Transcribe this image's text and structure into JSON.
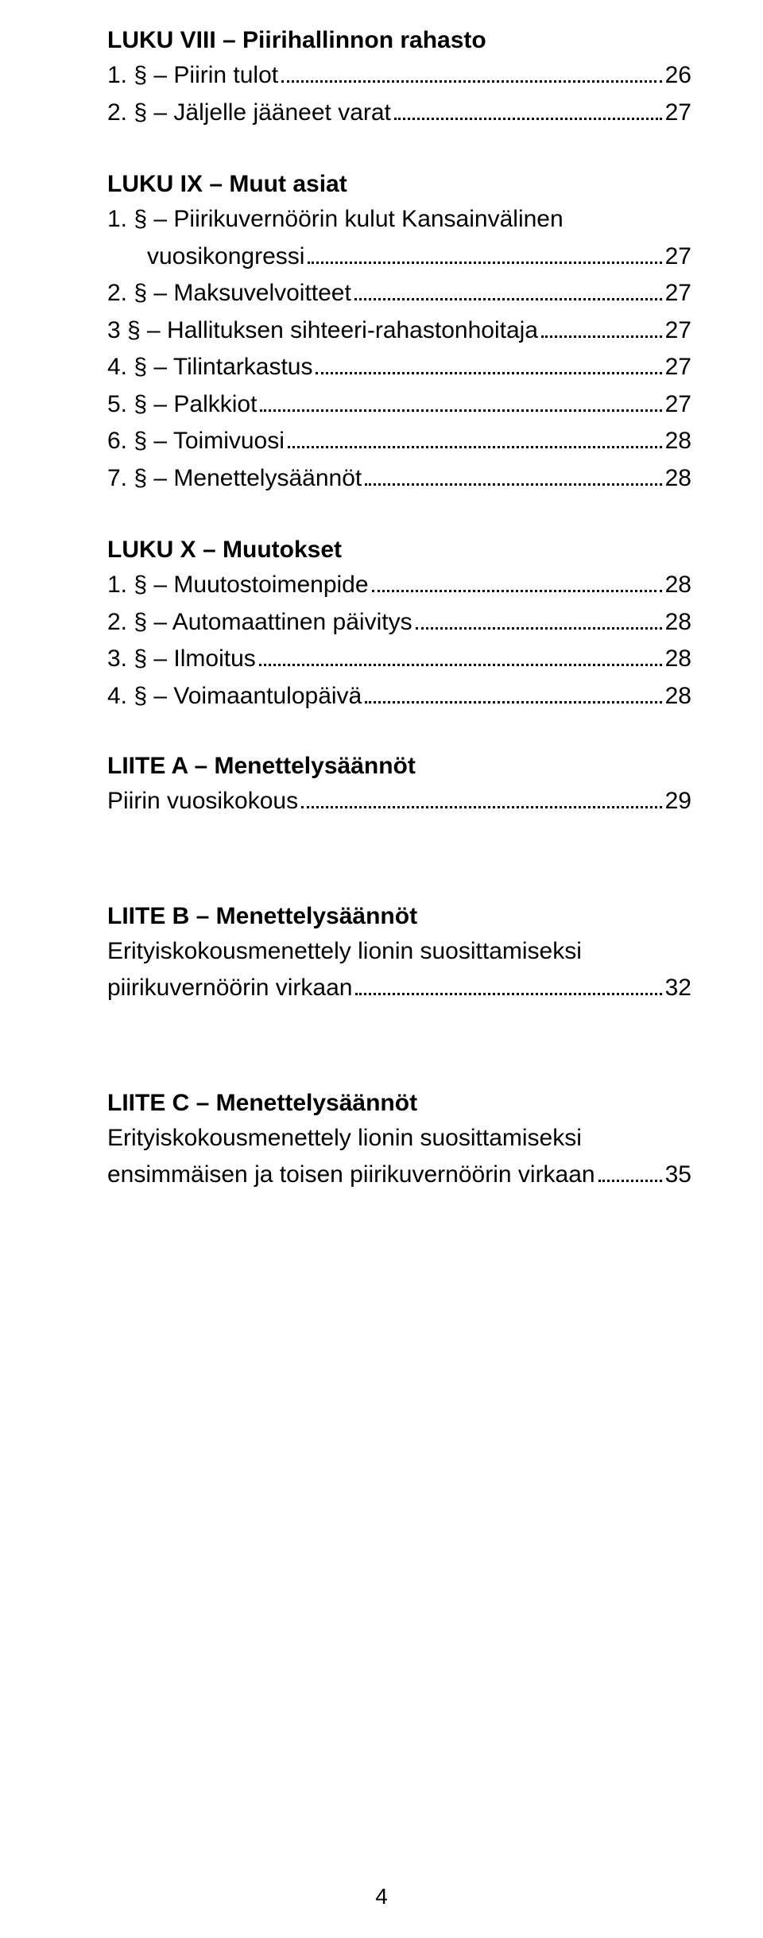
{
  "luku8": {
    "heading": "LUKU VIII – Piirihallinnon rahasto",
    "items": [
      {
        "label": "1. § – Piirin tulot",
        "page": "26"
      },
      {
        "label": "2. § – Jäljelle jääneet varat",
        "page": "27"
      }
    ]
  },
  "luku9": {
    "heading": "LUKU IX – Muut asiat",
    "items": [
      {
        "label": "1. § – Piirikuvernöörin kulut Kansainvälinen",
        "label2": "vuosikongressi",
        "page": " 27",
        "wrap": true
      },
      {
        "label": "2. § – Maksuvelvoitteet",
        "page": " 27"
      },
      {
        "label": "3 § – Hallituksen sihteeri-rahastonhoitaja",
        "page": "27"
      },
      {
        "label": "4. § – Tilintarkastus",
        "page": " 27"
      },
      {
        "label": "5. § – Palkkiot",
        "page": "27"
      },
      {
        "label": "6. § – Toimivuosi",
        "page": "28"
      },
      {
        "label": "7. § – Menettelysäännöt",
        "page": "28"
      }
    ]
  },
  "luku10": {
    "heading": "LUKU X – Muutokset",
    "items": [
      {
        "label": "1. § – Muutostoimenpide",
        "page": "28"
      },
      {
        "label": "2. § – Automaattinen päivitys",
        "page": "28"
      },
      {
        "label": "3. § – Ilmoitus",
        "page": "28"
      },
      {
        "label": "4. § – Voimaantulopäivä",
        "page": "28"
      }
    ]
  },
  "liiteA": {
    "heading": "LIITE A – Menettelysäännöt",
    "items": [
      {
        "label": "Piirin vuosikokous",
        "page": "29"
      }
    ]
  },
  "liiteB": {
    "heading": "LIITE B – Menettelysäännöt",
    "subline1": "Erityiskokousmenettely lionin suosittamiseksi",
    "item": {
      "label": "piirikuvernöörin virkaan",
      "page": "32"
    }
  },
  "liiteC": {
    "heading": "LIITE C – Menettelysäännöt",
    "subline1": "Erityiskokousmenettely lionin suosittamiseksi",
    "item": {
      "label": "ensimmäisen ja toisen piirikuvernöörin virkaan",
      "page": "35"
    }
  },
  "pageNumber": "4"
}
